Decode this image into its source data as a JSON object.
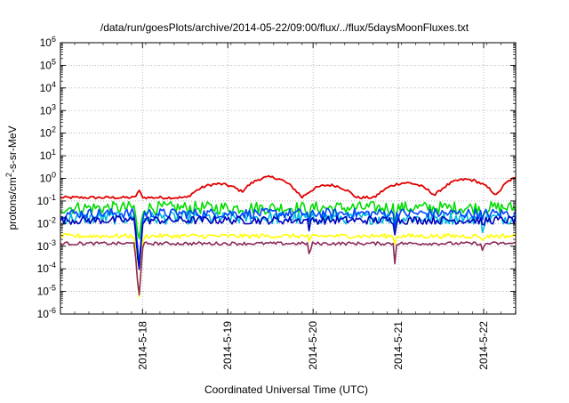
{
  "chart_data": {
    "type": "line",
    "title": "/data/run/goesPlots/archive/2014-05-22/09:00/flux/../flux/5daysMoonFluxes.txt",
    "xlabel": "Coordinated Universal Time (UTC)",
    "ylabel": "protons/cm²-s-sr-MeV",
    "ylabel_parts": [
      "protons/cm",
      "2",
      "-s-sr-MeV"
    ],
    "yscale": "log",
    "ylim": [
      1e-06,
      1000000.0
    ],
    "y_tick_exponents": [
      -6,
      -5,
      -4,
      -3,
      -2,
      -1,
      0,
      1,
      2,
      3,
      4,
      5,
      6
    ],
    "x_range_days": [
      "2014-05-17 00:55",
      "2014-05-22 09:00"
    ],
    "x_ticks": [
      "2014-5-18",
      "2014-5-19",
      "2014-5-20",
      "2014-5-21",
      "2014-5-22"
    ],
    "grid": true,
    "legend": "none",
    "series_colors": [
      "#e00000",
      "#00dd00",
      "#00bbdd",
      "#0044ff",
      "#0000bb",
      "#ffff00",
      "#8b2a5a"
    ],
    "series": [
      {
        "color": "#e00000",
        "base": -0.85,
        "events": [
          [
            1.85,
            -0.25,
            0.35
          ],
          [
            2.45,
            0.05,
            0.3
          ],
          [
            3.15,
            -0.3,
            0.32
          ],
          [
            4.05,
            -0.2,
            0.34
          ],
          [
            4.75,
            -0.05,
            0.32
          ],
          [
            5.35,
            0.0,
            0.2
          ]
        ]
      },
      {
        "color": "#00dd00",
        "base": -1.3,
        "amp": 0.28
      },
      {
        "color": "#00bbdd",
        "base": -1.75,
        "amp": 0.28
      },
      {
        "color": "#0044ff",
        "base": -1.55,
        "amp": 0.22
      },
      {
        "color": "#0000bb",
        "base": -1.85,
        "amp": 0.18
      },
      {
        "color": "#ffff00",
        "base": -2.55,
        "amp": 0.1
      },
      {
        "color": "#8b2a5a",
        "base": -2.88,
        "amp": 0.07
      }
    ]
  }
}
